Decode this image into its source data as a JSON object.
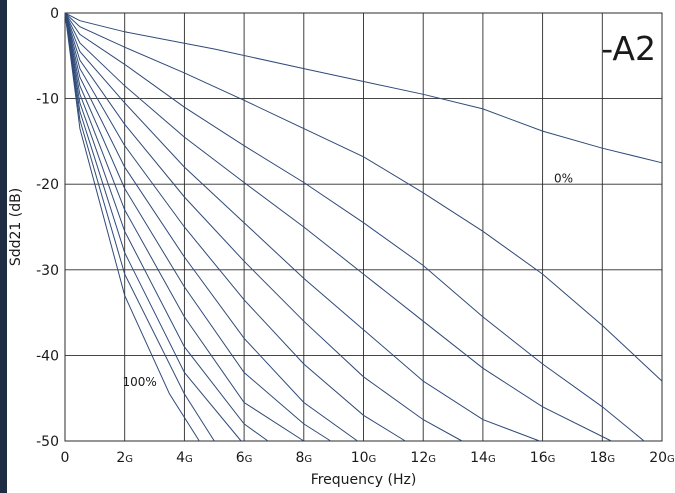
{
  "chart_data": {
    "type": "line",
    "xlabel": "Frequency (Hz)",
    "ylabel": "Sdd21 (dB)",
    "xlim": [
      0,
      20
    ],
    "ylim": [
      -50,
      0
    ],
    "grid": true,
    "x_ticks": [
      {
        "num": "0",
        "unit": "",
        "v": 0
      },
      {
        "num": "2",
        "unit": "G",
        "v": 2
      },
      {
        "num": "4",
        "unit": "G",
        "v": 4
      },
      {
        "num": "6",
        "unit": "G",
        "v": 6
      },
      {
        "num": "8",
        "unit": "G",
        "v": 8
      },
      {
        "num": "10",
        "unit": "G",
        "v": 10
      },
      {
        "num": "12",
        "unit": "G",
        "v": 12
      },
      {
        "num": "14",
        "unit": "G",
        "v": 14
      },
      {
        "num": "16",
        "unit": "G",
        "v": 16
      },
      {
        "num": "18",
        "unit": "G",
        "v": 18
      },
      {
        "num": "20",
        "unit": "G",
        "v": 20
      }
    ],
    "y_ticks": [
      {
        "label": "0",
        "v": 0
      },
      {
        "label": "-10",
        "v": -10
      },
      {
        "label": "-20",
        "v": -20
      },
      {
        "label": "-30",
        "v": -30
      },
      {
        "label": "-40",
        "v": -40
      },
      {
        "label": "-50",
        "v": -50
      }
    ],
    "corner_label": "-A2",
    "annotations": [
      {
        "text": "0%",
        "x": 16.7,
        "y": -19.8
      },
      {
        "text": "100%",
        "x": 2.5,
        "y": -43.6
      }
    ],
    "series": [
      {
        "x": [
          0,
          0.5,
          2,
          5,
          8,
          10,
          12,
          14,
          16,
          18,
          20
        ],
        "y": [
          0,
          -0.9,
          -2.2,
          -4.2,
          -6.5,
          -8.0,
          -9.5,
          -11.2,
          -13.8,
          -15.8,
          -17.5
        ]
      },
      {
        "x": [
          0,
          0.5,
          2,
          4,
          6,
          8,
          10,
          12,
          14,
          16,
          18,
          20
        ],
        "y": [
          0,
          -1.6,
          -4.0,
          -7.0,
          -10.2,
          -13.5,
          -16.8,
          -21.0,
          -25.5,
          -30.5,
          -36.5,
          -43.0
        ]
      },
      {
        "x": [
          0,
          0.5,
          2,
          4,
          6,
          8,
          10,
          12,
          14,
          16,
          18,
          19.4
        ],
        "y": [
          0,
          -2.5,
          -6.0,
          -11.0,
          -15.5,
          -19.8,
          -24.5,
          -29.5,
          -35.5,
          -41.0,
          -46.0,
          -50
        ]
      },
      {
        "x": [
          0,
          0.5,
          2,
          4,
          6,
          8,
          10,
          12,
          14,
          16,
          18.3
        ],
        "y": [
          0,
          -3.5,
          -8.5,
          -14.5,
          -19.8,
          -25.0,
          -30.5,
          -36.0,
          -41.5,
          -46.0,
          -50
        ]
      },
      {
        "x": [
          0,
          0.5,
          2,
          4,
          6,
          8,
          10,
          12,
          14,
          15.9
        ],
        "y": [
          0,
          -4.5,
          -10.5,
          -18.0,
          -24.5,
          -31.0,
          -37.0,
          -43.0,
          -47.5,
          -50
        ]
      },
      {
        "x": [
          0,
          0.5,
          2,
          4,
          6,
          8,
          10,
          12,
          13.3
        ],
        "y": [
          0,
          -5.5,
          -13.0,
          -21.5,
          -29.0,
          -36.0,
          -42.5,
          -47.5,
          -50
        ]
      },
      {
        "x": [
          0,
          0.5,
          2,
          4,
          6,
          8,
          10,
          11.4
        ],
        "y": [
          0,
          -6.5,
          -15.5,
          -25.0,
          -33.5,
          -41.0,
          -47.0,
          -50
        ]
      },
      {
        "x": [
          0,
          0.5,
          2,
          4,
          6,
          8,
          9.8
        ],
        "y": [
          0,
          -7.5,
          -18.0,
          -28.5,
          -38.0,
          -45.5,
          -50
        ]
      },
      {
        "x": [
          0,
          0.5,
          2,
          4,
          6,
          8,
          8.9
        ],
        "y": [
          0,
          -8.5,
          -20.5,
          -32.0,
          -42.0,
          -48.0,
          -50
        ]
      },
      {
        "x": [
          0,
          0.5,
          2,
          4,
          6,
          8.0
        ],
        "y": [
          0,
          -9.5,
          -23.0,
          -35.5,
          -45.5,
          -50
        ]
      },
      {
        "x": [
          0,
          0.5,
          2,
          4,
          6,
          6.8
        ],
        "y": [
          0,
          -10.5,
          -25.5,
          -39.0,
          -48.0,
          -50
        ]
      },
      {
        "x": [
          0,
          0.5,
          2,
          4,
          5.9
        ],
        "y": [
          0,
          -11.5,
          -28.0,
          -42.0,
          -50
        ]
      },
      {
        "x": [
          0,
          0.5,
          2,
          4,
          5.0
        ],
        "y": [
          0,
          -12.5,
          -30.5,
          -44.5,
          -50
        ]
      },
      {
        "x": [
          0,
          0.5,
          2,
          3.5,
          4.5
        ],
        "y": [
          0,
          -13.5,
          -33.0,
          -44.5,
          -50
        ]
      }
    ]
  }
}
